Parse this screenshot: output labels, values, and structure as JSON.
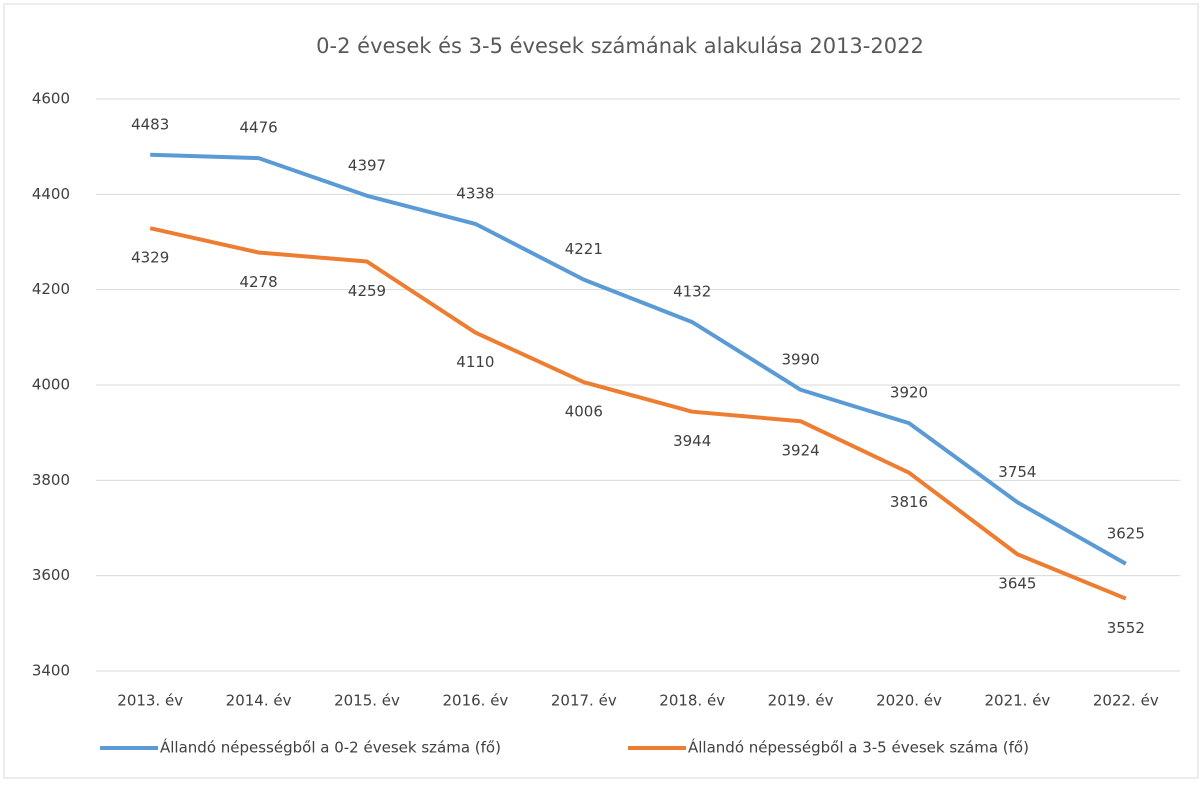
{
  "chart_data": {
    "type": "line",
    "title": "0-2 évesek és 3-5 évesek számának alakulása 2013-2022",
    "categories": [
      "2013. év",
      "2014. év",
      "2015. év",
      "2016. év",
      "2017. év",
      "2018. év",
      "2019. év",
      "2020. év",
      "2021. év",
      "2022. év"
    ],
    "series": [
      {
        "name": "Állandó népességből a 0-2 évesek száma (fő)",
        "color": "#5b9bd5",
        "values": [
          4483,
          4476,
          4397,
          4338,
          4221,
          4132,
          3990,
          3920,
          3754,
          3625
        ]
      },
      {
        "name": "Állandó népességből a 3-5 évesek száma (fő)",
        "color": "#ed7d31",
        "values": [
          4329,
          4278,
          4259,
          4110,
          4006,
          3944,
          3924,
          3816,
          3645,
          3552
        ]
      }
    ],
    "ylim": [
      3400,
      4600
    ],
    "yticks": [
      3400,
      3600,
      3800,
      4000,
      4200,
      4400,
      4600
    ],
    "grid": true,
    "legend": "bottom"
  }
}
